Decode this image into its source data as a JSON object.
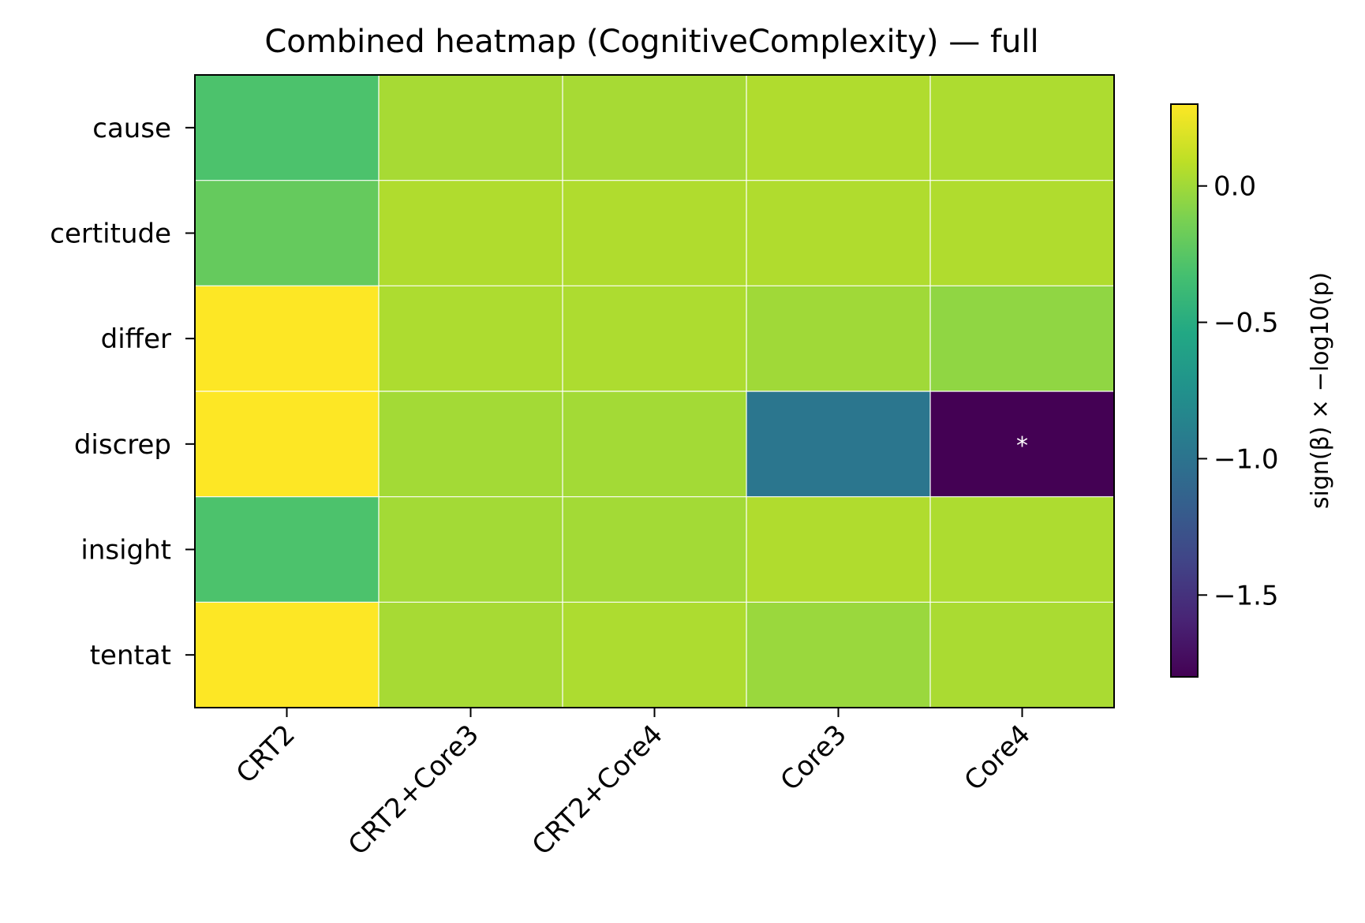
{
  "chart_data": {
    "type": "heatmap",
    "title": "Combined heatmap (CognitiveComplexity) — full",
    "x_categories": [
      "CRT2",
      "CRT2+Core3",
      "CRT2+Core4",
      "Core3",
      "Core4"
    ],
    "y_categories": [
      "cause",
      "certitude",
      "differ",
      "discrep",
      "insight",
      "tentat"
    ],
    "values": [
      [
        -0.3,
        0.02,
        0.02,
        0.05,
        0.04
      ],
      [
        -0.2,
        0.05,
        0.05,
        0.05,
        0.05
      ],
      [
        0.3,
        0.04,
        0.04,
        0.0,
        -0.05
      ],
      [
        0.3,
        0.01,
        0.01,
        -0.98,
        -1.8
      ],
      [
        -0.3,
        0.01,
        0.01,
        0.05,
        0.04
      ],
      [
        0.3,
        0.02,
        0.04,
        -0.02,
        0.03
      ]
    ],
    "annotations": [
      {
        "row": "discrep",
        "col": "Core4",
        "text": "*"
      }
    ],
    "colormap": "viridis",
    "colorbar": {
      "label": "sign(β) × −log10(p)",
      "range": [
        -1.8,
        0.3
      ],
      "ticks": [
        0.0,
        -0.5,
        -1.0,
        -1.5
      ],
      "tick_labels": [
        "0.0",
        "−0.5",
        "−1.0",
        "−1.5"
      ]
    },
    "grid": true
  }
}
